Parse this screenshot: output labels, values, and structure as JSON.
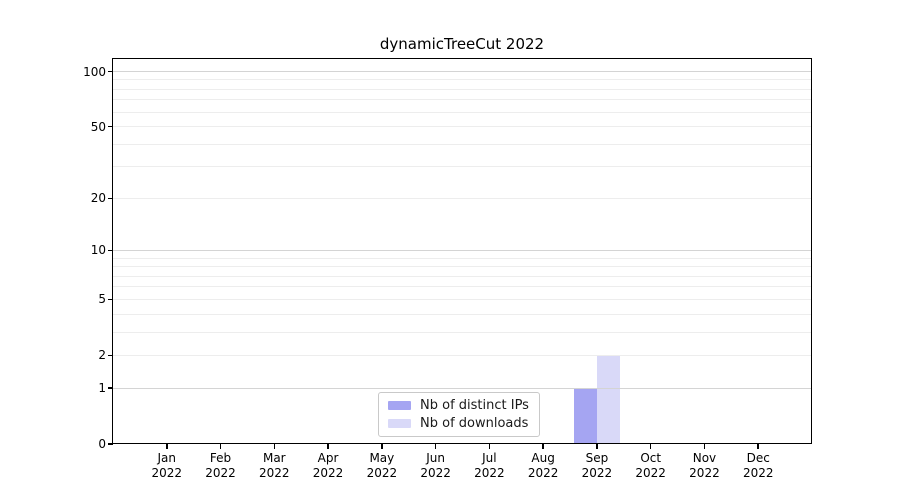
{
  "chart_data": {
    "type": "bar",
    "title": "dynamicTreeCut 2022",
    "categories": [
      "Jan 2022",
      "Feb 2022",
      "Mar 2022",
      "Apr 2022",
      "May 2022",
      "Jun 2022",
      "Jul 2022",
      "Aug 2022",
      "Sep 2022",
      "Oct 2022",
      "Nov 2022",
      "Dec 2022"
    ],
    "series": [
      {
        "name": "Nb of distinct IPs",
        "color": "#a5a5f2",
        "values": [
          0,
          0,
          0,
          0,
          0,
          0,
          0,
          0,
          1,
          0,
          0,
          0
        ]
      },
      {
        "name": "Nb of downloads",
        "color": "#d9d9f8",
        "values": [
          0,
          0,
          0,
          0,
          0,
          0,
          0,
          0,
          2,
          0,
          0,
          0
        ]
      }
    ],
    "xlabel": "",
    "ylabel": "",
    "yticks": [
      0,
      1,
      2,
      5,
      10,
      20,
      50,
      100
    ],
    "ylim": [
      0,
      117
    ],
    "yscale": "log1p",
    "grid": {
      "major_values": [
        1,
        10,
        100
      ],
      "major_color": "#d4d4d4",
      "minor_values": [
        2,
        3,
        4,
        5,
        6,
        7,
        8,
        9,
        20,
        30,
        40,
        50,
        60,
        70,
        80,
        90
      ],
      "minor_color": "#ededed"
    },
    "legend": {
      "position": "lower center"
    },
    "axis_color": "#000000",
    "text_color": "#1a1a1a"
  }
}
